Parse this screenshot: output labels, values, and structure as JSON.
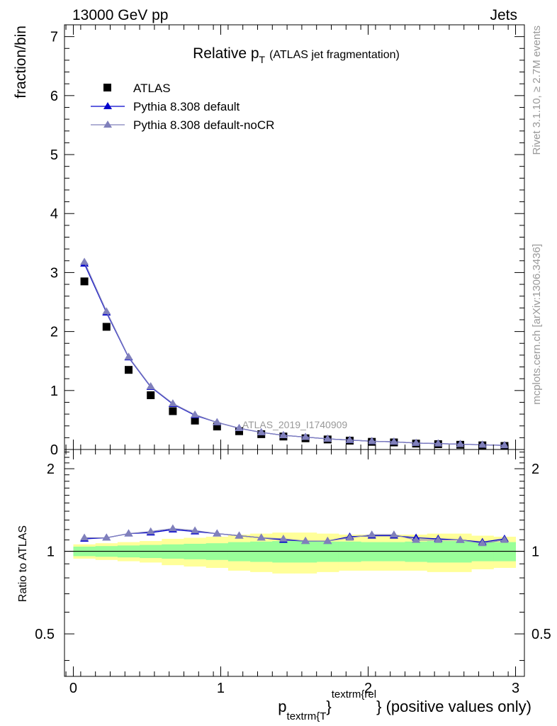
{
  "header": {
    "left": "13000 GeV pp",
    "right": "Jets"
  },
  "side_labels": {
    "rivet": "Rivet 3.1.10, ≥ 2.7M events",
    "mcplots": "mcplots.cern.ch [arXiv:1306.3436]"
  },
  "chart_data": [
    {
      "type": "scatter",
      "panel": "main",
      "title": "Relative p",
      "title_sub": "T",
      "title_extra": "(ATLAS jet fragmentation)",
      "ylabel": "fraction/bin",
      "watermark": "ATLAS_2019_I1740909",
      "xlim": [
        -0.06,
        3.06
      ],
      "ylim": [
        0,
        7.2
      ],
      "yticks": [
        "0",
        "1",
        "2",
        "3",
        "4",
        "5",
        "6",
        "7"
      ],
      "legend_position": "top-left",
      "x": [
        0.075,
        0.225,
        0.375,
        0.525,
        0.675,
        0.825,
        0.975,
        1.125,
        1.275,
        1.425,
        1.575,
        1.725,
        1.875,
        2.025,
        2.175,
        2.325,
        2.475,
        2.625,
        2.775,
        2.925
      ],
      "series": [
        {
          "name": "ATLAS",
          "color": "#000000",
          "marker": "square",
          "values": [
            2.85,
            2.08,
            1.35,
            0.92,
            0.65,
            0.49,
            0.39,
            0.31,
            0.26,
            0.22,
            0.19,
            0.17,
            0.15,
            0.13,
            0.12,
            0.1,
            0.09,
            0.08,
            0.07,
            0.06
          ]
        },
        {
          "name": "Pythia 8.308 default",
          "color": "#0000cc",
          "marker": "triangle",
          "values": [
            3.15,
            2.32,
            1.56,
            1.06,
            0.77,
            0.58,
            0.46,
            0.36,
            0.29,
            0.24,
            0.21,
            0.18,
            0.16,
            0.14,
            0.13,
            0.11,
            0.1,
            0.09,
            0.08,
            0.07
          ]
        },
        {
          "name": "Pythia 8.308 default-noCR",
          "color": "#8080bb",
          "marker": "triangle",
          "values": [
            3.18,
            2.34,
            1.57,
            1.07,
            0.78,
            0.59,
            0.46,
            0.36,
            0.29,
            0.24,
            0.21,
            0.18,
            0.16,
            0.14,
            0.13,
            0.11,
            0.1,
            0.09,
            0.08,
            0.07
          ]
        }
      ]
    },
    {
      "type": "line",
      "panel": "ratio",
      "ylabel": "Ratio to ATLAS",
      "xlabel_main": "p",
      "xlabel_sub": "textrm{T",
      "xlabel_brace": "}",
      "xlabel_sup": "textrm{rel",
      "xlabel_tail": "} (positive values only)",
      "xlim": [
        -0.06,
        3.06
      ],
      "ylim": [
        0.35,
        2.35
      ],
      "yticks": [
        {
          "v": 0.5,
          "label": "0.5"
        },
        {
          "v": 1,
          "label": "1"
        },
        {
          "v": 2,
          "label": "2"
        }
      ],
      "xticks": [
        {
          "v": 0,
          "label": "0"
        },
        {
          "v": 1,
          "label": "1"
        },
        {
          "v": 2,
          "label": "2"
        },
        {
          "v": 3,
          "label": "3"
        }
      ],
      "x": [
        0.075,
        0.225,
        0.375,
        0.525,
        0.675,
        0.825,
        0.975,
        1.125,
        1.275,
        1.425,
        1.575,
        1.725,
        1.875,
        2.025,
        2.175,
        2.325,
        2.475,
        2.625,
        2.775,
        2.925
      ],
      "band_inner": {
        "color": "#99ff99",
        "lo": [
          0.96,
          0.955,
          0.95,
          0.945,
          0.94,
          0.935,
          0.93,
          0.92,
          0.915,
          0.91,
          0.91,
          0.915,
          0.915,
          0.92,
          0.92,
          0.915,
          0.91,
          0.91,
          0.92,
          0.92
        ],
        "hi": [
          1.04,
          1.045,
          1.05,
          1.055,
          1.06,
          1.065,
          1.07,
          1.08,
          1.085,
          1.09,
          1.09,
          1.085,
          1.085,
          1.08,
          1.08,
          1.085,
          1.09,
          1.09,
          1.08,
          1.08
        ]
      },
      "band_outer": {
        "color": "#ffff99",
        "lo": [
          0.94,
          0.93,
          0.92,
          0.91,
          0.89,
          0.88,
          0.87,
          0.85,
          0.84,
          0.83,
          0.83,
          0.84,
          0.85,
          0.85,
          0.85,
          0.85,
          0.84,
          0.84,
          0.86,
          0.87
        ],
        "hi": [
          1.06,
          1.07,
          1.08,
          1.09,
          1.11,
          1.12,
          1.13,
          1.15,
          1.16,
          1.17,
          1.17,
          1.16,
          1.15,
          1.15,
          1.15,
          1.15,
          1.16,
          1.16,
          1.14,
          1.13
        ]
      },
      "series": [
        {
          "name": "Pythia 8.308 default",
          "color": "#0000cc",
          "marker": "triangle",
          "values": [
            1.11,
            1.12,
            1.16,
            1.17,
            1.2,
            1.18,
            1.16,
            1.14,
            1.12,
            1.1,
            1.09,
            1.09,
            1.13,
            1.14,
            1.14,
            1.12,
            1.11,
            1.1,
            1.08,
            1.11
          ]
        },
        {
          "name": "Pythia 8.308 default-noCR",
          "color": "#8080bb",
          "marker": "triangle",
          "values": [
            1.12,
            1.12,
            1.16,
            1.18,
            1.21,
            1.19,
            1.16,
            1.14,
            1.12,
            1.11,
            1.09,
            1.09,
            1.12,
            1.15,
            1.15,
            1.1,
            1.1,
            1.1,
            1.07,
            1.1
          ]
        }
      ]
    }
  ]
}
